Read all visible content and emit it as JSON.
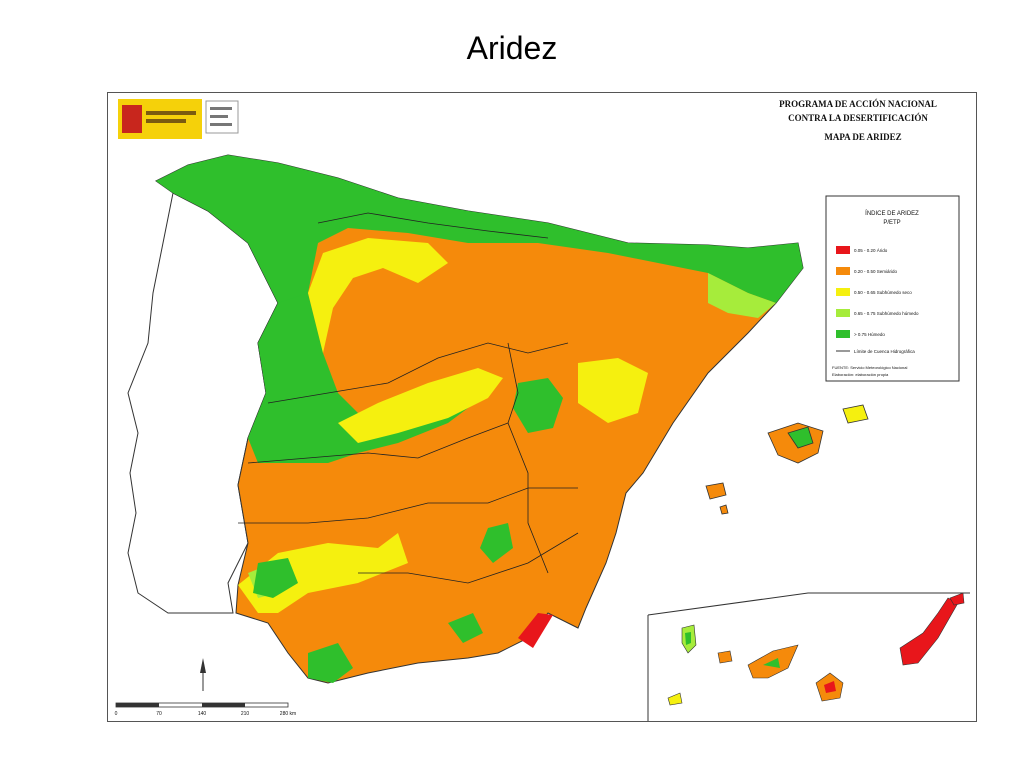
{
  "slide": {
    "title": "Aridez"
  },
  "map": {
    "header": {
      "line1": "PROGRAMA DE ACCIÓN NACIONAL",
      "line2": "CONTRA LA DESERTIFICACIÓN",
      "line3": "MAPA DE ARIDEZ"
    },
    "legend": {
      "title1": "ÍNDICE DE ARIDEZ",
      "title2": "P/ETP",
      "items": [
        {
          "label": "0.05 - 0.20 Árido",
          "color": "#e8161b"
        },
        {
          "label": "0.20 - 0.50 Semiárido",
          "color": "#f58a0b"
        },
        {
          "label": "0.50 - 0.65 Subhúmedo seco",
          "color": "#f5f00f"
        },
        {
          "label": "0.65 - 0.75 Subhúmedo húmedo",
          "color": "#a6ec3b"
        },
        {
          "label": "> 0.75 Húmedo",
          "color": "#2fbf2c"
        }
      ],
      "basin_label": "Límite de Cuenca Hidrográfica",
      "source1": "FUENTE: Servicio Meteorológico Nacional",
      "source2": "Elaboración: elaboración propia"
    },
    "scale": {
      "ticks": [
        "0",
        "70",
        "140",
        "210",
        "280 km"
      ]
    },
    "colors": {
      "arid": "#e8161b",
      "semiarid": "#f58a0b",
      "dry_subhumid": "#f5f00f",
      "moist_subhumid": "#a6ec3b",
      "humid": "#2fbf2c"
    }
  }
}
